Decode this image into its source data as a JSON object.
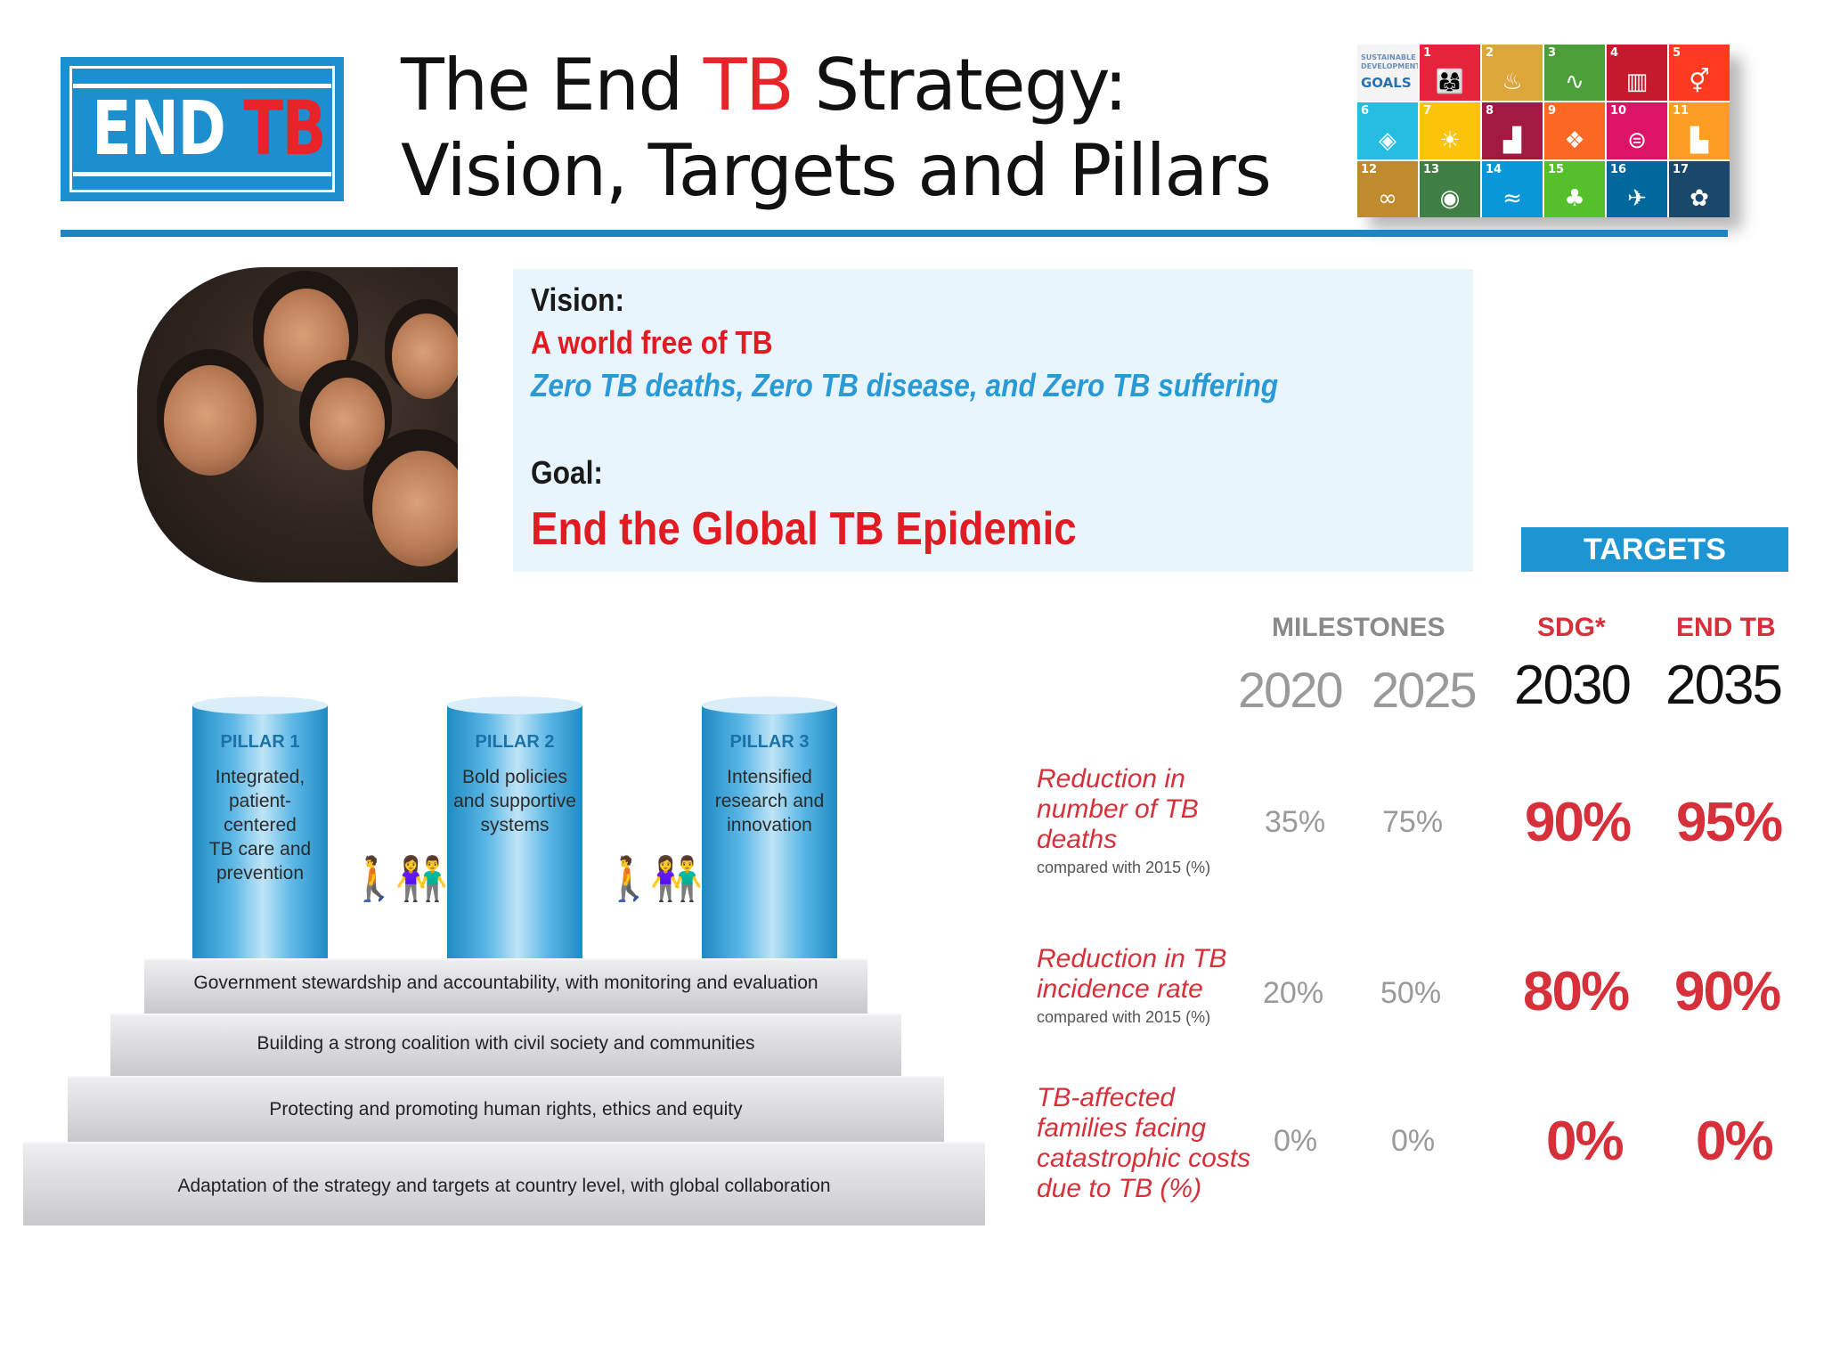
{
  "logo": {
    "word1": "END",
    "word2": "TB"
  },
  "title": {
    "line1_pre": "The End ",
    "line1_tb": "TB",
    "line1_post": " Strategy:",
    "line2": "Vision, Targets and Pillars"
  },
  "sdg": {
    "header": "SUSTAINABLE DEVELOPMENT",
    "word": "GOALS",
    "tiles": [
      {
        "num": "1",
        "color": "#e5243b",
        "icon": "people-row-icon",
        "glyph": "👨‍👩‍👧"
      },
      {
        "num": "2",
        "color": "#dda63a",
        "icon": "bowl-icon",
        "glyph": "♨"
      },
      {
        "num": "3",
        "color": "#4c9f38",
        "icon": "heartbeat-icon",
        "glyph": "∿"
      },
      {
        "num": "4",
        "color": "#c5192d",
        "icon": "book-icon",
        "glyph": "▥"
      },
      {
        "num": "5",
        "color": "#ff3a21",
        "icon": "gender-icon",
        "glyph": "⚥"
      },
      {
        "num": "6",
        "color": "#26bde2",
        "icon": "water-drop-icon",
        "glyph": "◈"
      },
      {
        "num": "7",
        "color": "#fcc30b",
        "icon": "sun-icon",
        "glyph": "☀"
      },
      {
        "num": "8",
        "color": "#a21942",
        "icon": "growth-chart-icon",
        "glyph": "▟"
      },
      {
        "num": "9",
        "color": "#fd6925",
        "icon": "cubes-icon",
        "glyph": "❖"
      },
      {
        "num": "10",
        "color": "#dd1367",
        "icon": "equal-icon",
        "glyph": "⊜"
      },
      {
        "num": "11",
        "color": "#fd9d24",
        "icon": "buildings-icon",
        "glyph": "▙"
      },
      {
        "num": "12",
        "color": "#bf8b2e",
        "icon": "infinity-icon",
        "glyph": "∞"
      },
      {
        "num": "13",
        "color": "#3f7e44",
        "icon": "eye-globe-icon",
        "glyph": "◉"
      },
      {
        "num": "14",
        "color": "#0a97d9",
        "icon": "fish-icon",
        "glyph": "≈"
      },
      {
        "num": "15",
        "color": "#56c02b",
        "icon": "tree-icon",
        "glyph": "♣"
      },
      {
        "num": "16",
        "color": "#00689d",
        "icon": "dove-icon",
        "glyph": "✈"
      },
      {
        "num": "17",
        "color": "#19486a",
        "icon": "flower-icon",
        "glyph": "✿"
      }
    ]
  },
  "vision": {
    "vision_label": "Vision:",
    "vision_red": "A world free of TB",
    "vision_blue": "Zero TB deaths, Zero TB disease, and Zero TB suffering",
    "goal_label": "Goal:",
    "goal_text": "End the Global TB Epidemic"
  },
  "pillars": [
    {
      "label": "PILLAR 1",
      "desc": [
        "Integrated,",
        "patient-",
        "centered",
        "TB care and",
        "prevention"
      ]
    },
    {
      "label": "PILLAR 2",
      "desc": [
        "Bold policies",
        "and supportive",
        "systems"
      ]
    },
    {
      "label": "PILLAR 3",
      "desc": [
        "Intensified",
        "research and",
        "innovation"
      ]
    }
  ],
  "steps": [
    "Government stewardship and accountability, with monitoring and evaluation",
    "Building a strong coalition with civil society and communities",
    "Protecting and promoting human rights, ethics and equity",
    "Adaptation of the strategy and targets at country level, with global collaboration"
  ],
  "targets": {
    "banner": "TARGETS",
    "milestones_label": "MILESTONES",
    "sdg_label": "SDG*",
    "endtb_label": "END TB",
    "years": [
      "2020",
      "2025",
      "2030",
      "2035"
    ],
    "rows": [
      {
        "label": [
          "Reduction in",
          "number of TB",
          "deaths"
        ],
        "sub": "compared with 2015 (%)",
        "values": [
          "35%",
          "75%",
          "90%",
          "95%"
        ]
      },
      {
        "label": [
          "Reduction in TB",
          "incidence rate"
        ],
        "sub": "compared with 2015 (%)",
        "values": [
          "20%",
          "50%",
          "80%",
          "90%"
        ]
      },
      {
        "label": [
          "TB-affected",
          "families facing",
          "catastrophic costs",
          "due to TB (%)"
        ],
        "sub": "",
        "values": [
          "0%",
          "0%",
          "0%",
          "0%"
        ]
      }
    ]
  }
}
